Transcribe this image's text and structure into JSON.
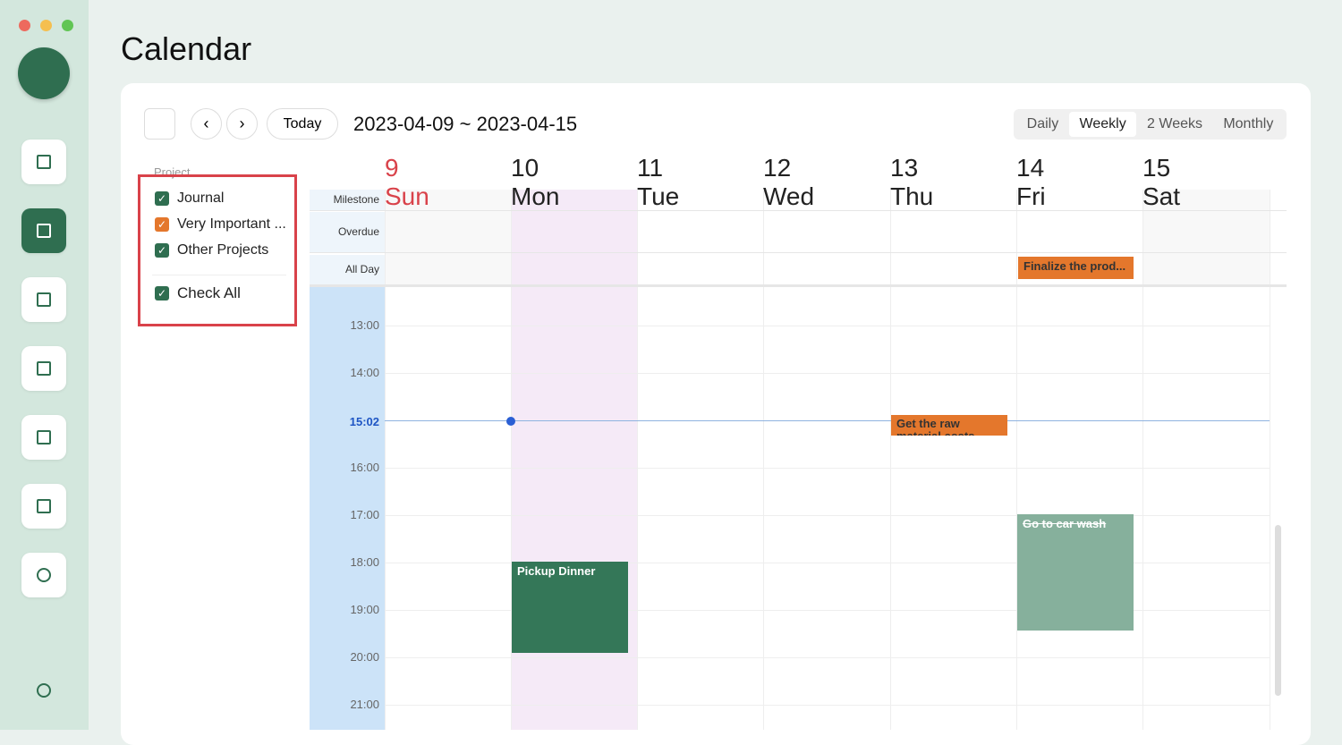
{
  "header": {
    "title": "Calendar"
  },
  "toolbar": {
    "today": "Today",
    "range": "2023-04-09 ~ 2023-04-15",
    "views": [
      "Daily",
      "Weekly",
      "2 Weeks",
      "Monthly"
    ]
  },
  "filter": {
    "label": "Project",
    "items": [
      "Journal",
      "Very Important ...",
      "Other Projects"
    ],
    "check_all": "Check All"
  },
  "days": [
    {
      "num": 9,
      "name": "Sun"
    },
    {
      "num": 10,
      "name": "Mon"
    },
    {
      "num": 11,
      "name": "Tue"
    },
    {
      "num": 12,
      "name": "Wed"
    },
    {
      "num": 13,
      "name": "Thu"
    },
    {
      "num": 14,
      "name": "Fri"
    },
    {
      "num": 15,
      "name": "Sat"
    }
  ],
  "row_labels": [
    "Milestone",
    "Overdue",
    "All Day"
  ],
  "times": [
    "13:00",
    "14:00",
    "15:02",
    "16:00",
    "17:00",
    "18:00",
    "19:00",
    "20:00",
    "21:00"
  ],
  "events": {
    "all_day": "Finalize the prod...",
    "raw": "Get the raw material costs",
    "dinner": "Pickup Dinner",
    "car": "Go to car wash"
  }
}
